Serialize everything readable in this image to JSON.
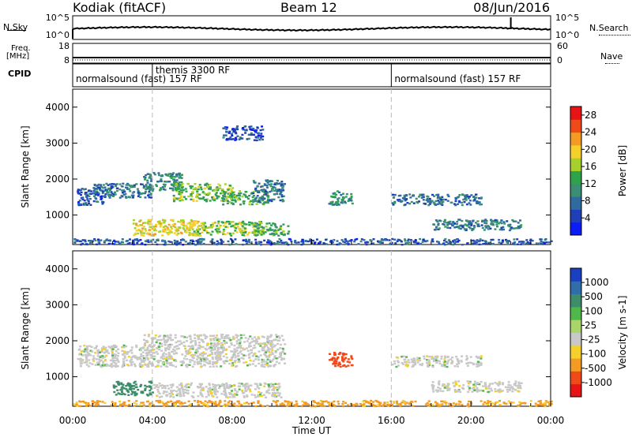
{
  "header": {
    "station": "Kodiak (fitACF)",
    "beam": "Beam 12",
    "date": "08/Jun/2016"
  },
  "summary_labels": {
    "nsky": "N.Sky",
    "nsearch": "N.Search",
    "freq_line1": "Freq.",
    "freq_line2": "[MHz]",
    "nave": "Nave",
    "cpid": "CPID",
    "nsky_ticks": [
      "10^5",
      "10^0"
    ],
    "nsearch_ticks": [
      "10^5",
      "10^0"
    ],
    "freq_ticks": [
      "18",
      "8"
    ],
    "nave_ticks": [
      "60",
      "0"
    ]
  },
  "cpid_segments": [
    {
      "label": "normalsound (fast) 157 RF",
      "start_hour": 0
    },
    {
      "label": "themis 3300 RF",
      "start_hour": 4
    },
    {
      "label": "normalsound (fast) 157 RF",
      "start_hour": 16
    }
  ],
  "chart_data": [
    {
      "type": "heatmap",
      "title": "Power",
      "ylabel": "Slant Range [km]",
      "xlabel": "",
      "x_range_hours": [
        0,
        24
      ],
      "ylim": [
        180,
        4500
      ],
      "yticks": [
        1000,
        2000,
        3000,
        4000
      ],
      "colorbar": {
        "label": "Power [dB]",
        "ticks": [
          "4",
          "8",
          "12",
          "16",
          "20",
          "24",
          "28"
        ],
        "colors": [
          "#0b1cf5",
          "#1f3fb6",
          "#2f6aa0",
          "#3a8e74",
          "#2fa24c",
          "#a6d02c",
          "#f5d02b",
          "#f59a22",
          "#f04a1a",
          "#e61414"
        ]
      },
      "echo_regions": [
        {
          "t0": 0.2,
          "t1": 1.6,
          "r0": 1300,
          "r1": 1800,
          "power": 7
        },
        {
          "t0": 1.0,
          "t1": 4.0,
          "r0": 1500,
          "r1": 1900,
          "power": 9
        },
        {
          "t0": 3.5,
          "t1": 5.5,
          "r0": 1700,
          "r1": 2200,
          "power": 11
        },
        {
          "t0": 5.0,
          "t1": 8.0,
          "r0": 1400,
          "r1": 1900,
          "power": 16
        },
        {
          "t0": 7.5,
          "t1": 9.8,
          "r0": 1300,
          "r1": 1700,
          "power": 14
        },
        {
          "t0": 9.0,
          "t1": 10.6,
          "r0": 1400,
          "r1": 2000,
          "power": 9
        },
        {
          "t0": 3.0,
          "t1": 6.5,
          "r0": 450,
          "r1": 900,
          "power": 20
        },
        {
          "t0": 6.0,
          "t1": 9.5,
          "r0": 450,
          "r1": 850,
          "power": 17
        },
        {
          "t0": 9.0,
          "t1": 10.8,
          "r0": 450,
          "r1": 800,
          "power": 14
        },
        {
          "t0": 12.8,
          "t1": 14.0,
          "r0": 1300,
          "r1": 1700,
          "power": 12
        },
        {
          "t0": 16.0,
          "t1": 20.5,
          "r0": 1300,
          "r1": 1600,
          "power": 9
        },
        {
          "t0": 18.0,
          "t1": 22.5,
          "r0": 600,
          "r1": 900,
          "power": 10
        },
        {
          "t0": 7.5,
          "t1": 9.5,
          "r0": 3100,
          "r1": 3500,
          "power": 6
        },
        {
          "t0": 0.0,
          "t1": 24.0,
          "r0": 200,
          "r1": 360,
          "power": 7
        }
      ]
    },
    {
      "type": "heatmap",
      "title": "Velocity",
      "ylabel": "Slant Range [km]",
      "xlabel": "Time UT",
      "x_range_hours": [
        0,
        24
      ],
      "ylim": [
        180,
        4500
      ],
      "yticks": [
        1000,
        2000,
        3000,
        4000
      ],
      "xticks": [
        "00:00",
        "04:00",
        "08:00",
        "12:00",
        "16:00",
        "20:00",
        "00:00"
      ],
      "colorbar": {
        "label": "Velocity [m s-1]",
        "ticks": [
          "1000",
          "500",
          "100",
          "25",
          "-25",
          "-100",
          "-500",
          "-1000"
        ],
        "colors": [
          "#1a3fc0",
          "#2f6ea8",
          "#3d8c6a",
          "#4fb84a",
          "#a8d66a",
          "#c8c8c8",
          "#f5d02b",
          "#f59a22",
          "#f04a1a",
          "#e61414"
        ]
      },
      "echo_regions": [
        {
          "t0": 0.2,
          "t1": 4.0,
          "r0": 1300,
          "r1": 1900,
          "vel": 0
        },
        {
          "t0": 3.5,
          "t1": 10.6,
          "r0": 1300,
          "r1": 2200,
          "vel": 0
        },
        {
          "t0": 2.0,
          "t1": 4.0,
          "r0": 500,
          "r1": 900,
          "vel": 150
        },
        {
          "t0": 4.0,
          "t1": 10.5,
          "r0": 450,
          "r1": 850,
          "vel": 0
        },
        {
          "t0": 12.8,
          "t1": 14.0,
          "r0": 1300,
          "r1": 1700,
          "vel": -600
        },
        {
          "t0": 16.0,
          "t1": 20.5,
          "r0": 1300,
          "r1": 1600,
          "vel": 0
        },
        {
          "t0": 18.0,
          "t1": 22.5,
          "r0": 600,
          "r1": 900,
          "vel": 0
        },
        {
          "t0": 0.0,
          "t1": 24.0,
          "r0": 200,
          "r1": 360,
          "vel": -80
        }
      ]
    }
  ]
}
